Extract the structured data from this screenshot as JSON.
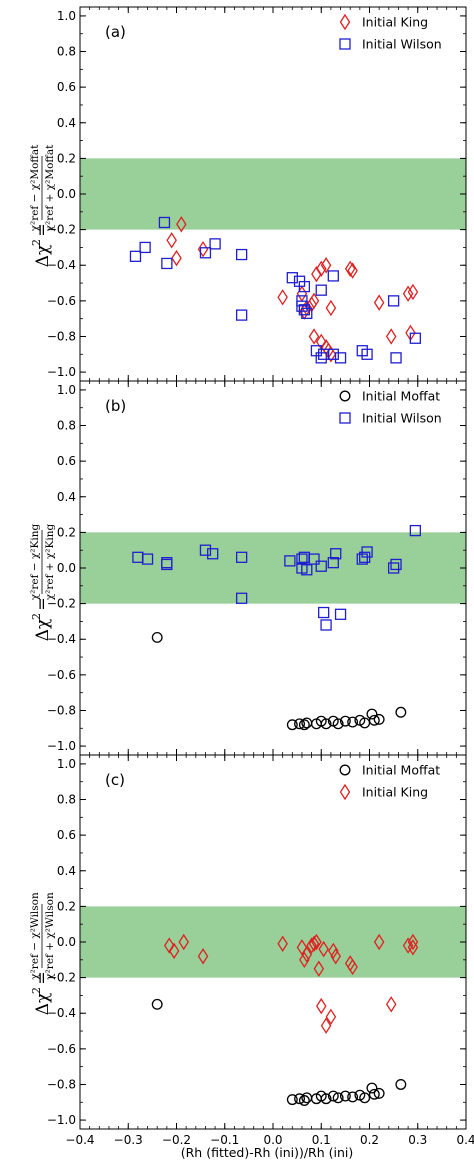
{
  "chart_data": [
    {
      "type": "scatter",
      "panel_label": "(a)",
      "ylabel": {
        "lhs": "Δχ",
        "lhs_sup": "2",
        "eq": "=",
        "num": "χ²ref − χ²Moffat",
        "den": "χ²ref + χ²Moffat"
      },
      "xlim": [
        -0.4,
        0.4
      ],
      "ylim": [
        -1.05,
        1.05
      ],
      "x_ticks": [
        -0.4,
        -0.3,
        -0.2,
        -0.1,
        0.0,
        0.1,
        0.2,
        0.3,
        0.4
      ],
      "x_tick_labels": [
        "−0.4",
        "−0.3",
        "−0.2",
        "−0.1",
        "0.0",
        "0.1",
        "0.2",
        "0.3",
        "0.4"
      ],
      "y_ticks": [
        -1.0,
        -0.8,
        -0.6,
        -0.4,
        -0.2,
        0.0,
        0.2,
        0.4,
        0.6,
        0.8,
        1.0
      ],
      "y_tick_labels": [
        "−1.0",
        "−0.8",
        "−0.6",
        "−0.4",
        "−0.2",
        "0.0",
        "0.2",
        "0.4",
        "0.6",
        "0.8",
        "1.0"
      ],
      "band": [
        -0.2,
        0.2
      ],
      "band_color": "#99d099",
      "legend_position": "top-right",
      "series": [
        {
          "name": "Initial King",
          "marker": "diamond",
          "color": "#e02020",
          "points": [
            [
              -0.19,
              -0.17
            ],
            [
              -0.21,
              -0.26
            ],
            [
              -0.2,
              -0.36
            ],
            [
              -0.145,
              -0.31
            ],
            [
              0.02,
              -0.58
            ],
            [
              0.06,
              -0.56
            ],
            [
              0.065,
              -0.66
            ],
            [
              0.07,
              -0.64
            ],
            [
              0.08,
              -0.62
            ],
            [
              0.085,
              -0.6
            ],
            [
              0.09,
              -0.45
            ],
            [
              0.1,
              -0.42
            ],
            [
              0.11,
              -0.4
            ],
            [
              0.12,
              -0.64
            ],
            [
              0.085,
              -0.8
            ],
            [
              0.1,
              -0.83
            ],
            [
              0.11,
              -0.86
            ],
            [
              0.115,
              -0.88
            ],
            [
              0.12,
              -0.9
            ],
            [
              0.16,
              -0.42
            ],
            [
              0.165,
              -0.43
            ],
            [
              0.22,
              -0.61
            ],
            [
              0.245,
              -0.8
            ],
            [
              0.28,
              -0.56
            ],
            [
              0.29,
              -0.55
            ],
            [
              0.285,
              -0.78
            ]
          ]
        },
        {
          "name": "Initial Wilson",
          "marker": "square",
          "color": "#1f1fd0",
          "points": [
            [
              -0.225,
              -0.16
            ],
            [
              -0.22,
              -0.39
            ],
            [
              -0.285,
              -0.35
            ],
            [
              -0.265,
              -0.3
            ],
            [
              -0.14,
              -0.33
            ],
            [
              -0.12,
              -0.28
            ],
            [
              -0.065,
              -0.34
            ],
            [
              -0.065,
              -0.68
            ],
            [
              0.04,
              -0.47
            ],
            [
              0.055,
              -0.49
            ],
            [
              0.065,
              -0.52
            ],
            [
              0.06,
              -0.6
            ],
            [
              0.065,
              -0.65
            ],
            [
              0.07,
              -0.67
            ],
            [
              0.06,
              -0.63
            ],
            [
              0.1,
              -0.54
            ],
            [
              0.125,
              -0.46
            ],
            [
              0.09,
              -0.88
            ],
            [
              0.105,
              -0.9
            ],
            [
              0.1,
              -0.92
            ],
            [
              0.125,
              -0.9
            ],
            [
              0.14,
              -0.92
            ],
            [
              0.185,
              -0.88
            ],
            [
              0.195,
              -0.9
            ],
            [
              0.25,
              -0.6
            ],
            [
              0.255,
              -0.92
            ],
            [
              0.295,
              -0.81
            ]
          ]
        }
      ]
    },
    {
      "type": "scatter",
      "panel_label": "(b)",
      "ylabel": {
        "lhs": "Δχ",
        "lhs_sup": "2",
        "eq": "=",
        "num": "χ²ref − χ²King",
        "den": "χ²ref + χ²King"
      },
      "xlim": [
        -0.4,
        0.4
      ],
      "ylim": [
        -1.05,
        1.05
      ],
      "x_ticks": [
        -0.4,
        -0.3,
        -0.2,
        -0.1,
        0.0,
        0.1,
        0.2,
        0.3,
        0.4
      ],
      "x_tick_labels": [
        "−0.4",
        "−0.3",
        "−0.2",
        "−0.1",
        "0.0",
        "0.1",
        "0.2",
        "0.3",
        "0.4"
      ],
      "y_ticks": [
        -1.0,
        -0.8,
        -0.6,
        -0.4,
        -0.2,
        0.0,
        0.2,
        0.4,
        0.6,
        0.8,
        1.0
      ],
      "y_tick_labels": [
        "−1.0",
        "−0.8",
        "−0.6",
        "−0.4",
        "−0.2",
        "0.0",
        "0.2",
        "0.4",
        "0.6",
        "0.8",
        "1.0"
      ],
      "band": [
        -0.2,
        0.2
      ],
      "band_color": "#99d099",
      "legend_position": "top-right",
      "series": [
        {
          "name": "Initial Moffat",
          "marker": "circle",
          "color": "#000000",
          "points": [
            [
              -0.24,
              -0.39
            ],
            [
              0.04,
              -0.88
            ],
            [
              0.055,
              -0.875
            ],
            [
              0.065,
              -0.88
            ],
            [
              0.07,
              -0.87
            ],
            [
              0.09,
              -0.875
            ],
            [
              0.1,
              -0.86
            ],
            [
              0.11,
              -0.875
            ],
            [
              0.125,
              -0.86
            ],
            [
              0.135,
              -0.875
            ],
            [
              0.15,
              -0.86
            ],
            [
              0.165,
              -0.865
            ],
            [
              0.18,
              -0.855
            ],
            [
              0.19,
              -0.87
            ],
            [
              0.205,
              -0.82
            ],
            [
              0.21,
              -0.855
            ],
            [
              0.22,
              -0.85
            ],
            [
              0.265,
              -0.81
            ]
          ]
        },
        {
          "name": "Initial Wilson",
          "marker": "square",
          "color": "#1f1fd0",
          "points": [
            [
              -0.28,
              0.06
            ],
            [
              -0.26,
              0.05
            ],
            [
              -0.22,
              0.03
            ],
            [
              -0.22,
              0.02
            ],
            [
              -0.14,
              0.1
            ],
            [
              -0.125,
              0.08
            ],
            [
              -0.065,
              0.06
            ],
            [
              -0.065,
              -0.17
            ],
            [
              0.035,
              0.04
            ],
            [
              0.06,
              0.05
            ],
            [
              0.06,
              0.0
            ],
            [
              0.065,
              0.06
            ],
            [
              0.07,
              -0.01
            ],
            [
              0.085,
              0.05
            ],
            [
              0.1,
              0.01
            ],
            [
              0.125,
              0.03
            ],
            [
              0.13,
              0.08
            ],
            [
              0.105,
              -0.25
            ],
            [
              0.11,
              -0.32
            ],
            [
              0.14,
              -0.26
            ],
            [
              0.185,
              0.05
            ],
            [
              0.19,
              0.06
            ],
            [
              0.195,
              0.09
            ],
            [
              0.25,
              0.0
            ],
            [
              0.255,
              0.02
            ],
            [
              0.295,
              0.21
            ]
          ]
        }
      ]
    },
    {
      "type": "scatter",
      "panel_label": "(c)",
      "ylabel": {
        "lhs": "Δχ",
        "lhs_sup": "2",
        "eq": "=",
        "num": "χ²ref − χ²Wilson",
        "den": "χ²ref + χ²Wilson"
      },
      "xlabel": "(Rh (fitted)-Rh (ini))/Rh (ini)",
      "xlim": [
        -0.4,
        0.4
      ],
      "ylim": [
        -1.05,
        1.05
      ],
      "x_ticks": [
        -0.4,
        -0.3,
        -0.2,
        -0.1,
        0.0,
        0.1,
        0.2,
        0.3,
        0.4
      ],
      "x_tick_labels": [
        "−0.4",
        "−0.3",
        "−0.2",
        "−0.1",
        "0.0",
        "0.1",
        "0.2",
        "0.3",
        "0.4"
      ],
      "y_ticks": [
        -1.0,
        -0.8,
        -0.6,
        -0.4,
        -0.2,
        0.0,
        0.2,
        0.4,
        0.6,
        0.8,
        1.0
      ],
      "y_tick_labels": [
        "−1.0",
        "−0.8",
        "−0.6",
        "−0.4",
        "−0.2",
        "0.0",
        "0.2",
        "0.4",
        "0.6",
        "0.8",
        "1.0"
      ],
      "band": [
        -0.2,
        0.2
      ],
      "band_color": "#99d099",
      "legend_position": "top-right",
      "series": [
        {
          "name": "Initial Moffat",
          "marker": "circle",
          "color": "#000000",
          "points": [
            [
              -0.24,
              -0.35
            ],
            [
              0.04,
              -0.885
            ],
            [
              0.055,
              -0.88
            ],
            [
              0.065,
              -0.89
            ],
            [
              0.07,
              -0.875
            ],
            [
              0.09,
              -0.88
            ],
            [
              0.1,
              -0.865
            ],
            [
              0.11,
              -0.88
            ],
            [
              0.125,
              -0.865
            ],
            [
              0.135,
              -0.875
            ],
            [
              0.15,
              -0.865
            ],
            [
              0.165,
              -0.87
            ],
            [
              0.18,
              -0.86
            ],
            [
              0.19,
              -0.875
            ],
            [
              0.205,
              -0.82
            ],
            [
              0.21,
              -0.855
            ],
            [
              0.22,
              -0.85
            ],
            [
              0.265,
              -0.8
            ]
          ]
        },
        {
          "name": "Initial King",
          "marker": "diamond",
          "color": "#e02020",
          "points": [
            [
              -0.215,
              -0.02
            ],
            [
              -0.205,
              -0.05
            ],
            [
              -0.185,
              0.0
            ],
            [
              -0.145,
              -0.08
            ],
            [
              0.02,
              -0.01
            ],
            [
              0.06,
              -0.03
            ],
            [
              0.065,
              -0.1
            ],
            [
              0.07,
              -0.07
            ],
            [
              0.08,
              -0.02
            ],
            [
              0.085,
              -0.01
            ],
            [
              0.09,
              0.0
            ],
            [
              0.095,
              -0.15
            ],
            [
              0.1,
              -0.36
            ],
            [
              0.105,
              -0.04
            ],
            [
              0.11,
              -0.47
            ],
            [
              0.12,
              -0.42
            ],
            [
              0.125,
              -0.05
            ],
            [
              0.13,
              -0.08
            ],
            [
              0.16,
              -0.12
            ],
            [
              0.165,
              -0.14
            ],
            [
              0.22,
              0.0
            ],
            [
              0.245,
              -0.35
            ],
            [
              0.28,
              -0.02
            ],
            [
              0.29,
              0.0
            ],
            [
              0.29,
              -0.03
            ]
          ]
        }
      ]
    }
  ]
}
